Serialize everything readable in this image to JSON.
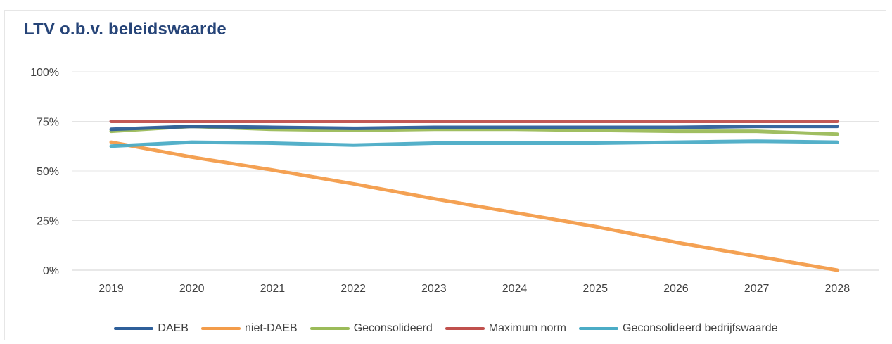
{
  "chart_data": {
    "type": "line",
    "title": "LTV o.b.v. beleidswaarde",
    "xlabel": "",
    "ylabel": "",
    "x": [
      "2019",
      "2020",
      "2021",
      "2022",
      "2023",
      "2024",
      "2025",
      "2026",
      "2027",
      "2028"
    ],
    "ylim": [
      0,
      100
    ],
    "yticks": [
      "0%",
      "25%",
      "50%",
      "75%",
      "100%"
    ],
    "grid": true,
    "legend_position": "bottom",
    "series": [
      {
        "name": "DAEB",
        "color": "#2e5f9a",
        "values": [
          71,
          72.5,
          72,
          71.5,
          72,
          72,
          72,
          72,
          72.5,
          72.5
        ]
      },
      {
        "name": "niet-DAEB",
        "color": "#f39c4a",
        "values": [
          64.5,
          57,
          50.5,
          43.5,
          36,
          29,
          22,
          14,
          7,
          0
        ]
      },
      {
        "name": "Geconsolideerd",
        "color": "#9bbb59",
        "values": [
          70,
          72.5,
          71,
          70.5,
          71,
          71,
          70.5,
          70,
          70,
          68.5
        ]
      },
      {
        "name": "Maximum norm",
        "color": "#c0504d",
        "values": [
          75,
          75,
          75,
          75,
          75,
          75,
          75,
          75,
          75,
          75
        ]
      },
      {
        "name": "Geconsolideerd bedrijfswaarde",
        "color": "#4bacc6",
        "values": [
          62.5,
          64.5,
          64,
          63,
          64,
          64,
          64,
          64.5,
          65,
          64.5
        ]
      }
    ]
  }
}
